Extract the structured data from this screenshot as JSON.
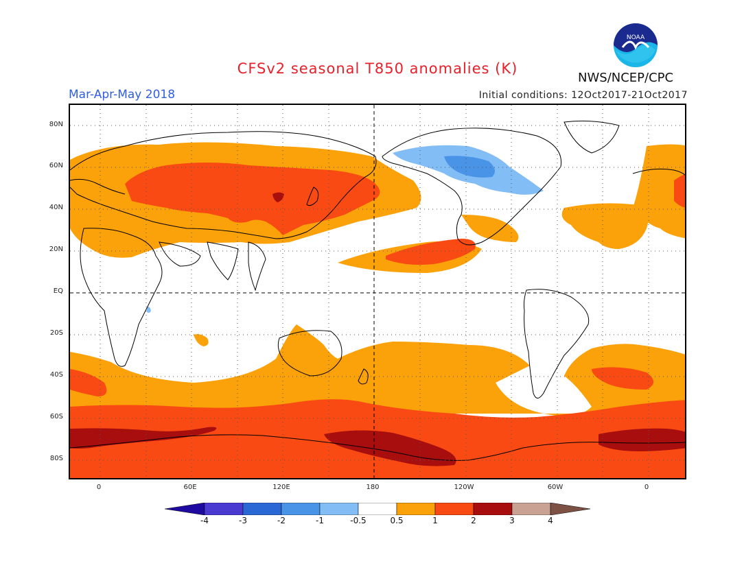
{
  "header": {
    "title": "CFSv2 seasonal T850 anomalies (K)",
    "season": "Mar-Apr-May 2018",
    "initial_conditions": "Initial conditions: 12Oct2017-21Oct2017",
    "agency": "NWS/NCEP/CPC",
    "logo_text": "NOAA",
    "logo_icon": "noaa-logo-icon"
  },
  "map": {
    "lat_labels": [
      "80N",
      "60N",
      "40N",
      "20N",
      "EQ",
      "20S",
      "40S",
      "60S",
      "80S"
    ],
    "lon_labels": [
      "0",
      "60E",
      "120E",
      "180",
      "120W",
      "60W",
      "0"
    ],
    "projection": "cylindrical equidistant",
    "center_longitude": 180,
    "grid": "dotted every 20 degrees",
    "reference_lines": [
      "Equator (dashed)",
      "180 meridian (dashed)"
    ]
  },
  "legend": {
    "unit": "K",
    "tick_labels": [
      "-4",
      "-3",
      "-2",
      "-1",
      "-0.5",
      "0.5",
      "1",
      "2",
      "3",
      "4"
    ],
    "bins": [
      {
        "range": "< -4",
        "color": "#1e0aa0"
      },
      {
        "range": "-4 to -3",
        "color": "#4a3ad2"
      },
      {
        "range": "-3 to -2",
        "color": "#2a68d6"
      },
      {
        "range": "-2 to -1",
        "color": "#4a94e8"
      },
      {
        "range": "-1 to -0.5",
        "color": "#82bdf5"
      },
      {
        "range": "-0.5 to 0.5",
        "color": "#ffffff"
      },
      {
        "range": "0.5 to 1",
        "color": "#fba10a"
      },
      {
        "range": "1 to 2",
        "color": "#f84a12"
      },
      {
        "range": "2 to 3",
        "color": "#a80e0e"
      },
      {
        "range": "3 to 4",
        "color": "#c9a293"
      },
      {
        "range": "> 4",
        "color": "#7d5244"
      }
    ]
  }
}
